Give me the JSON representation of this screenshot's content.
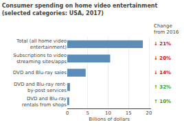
{
  "chart_data": {
    "type": "bar",
    "orientation": "horizontal",
    "title": "Consumer spending on home video entertainment",
    "subtitle": "(selected categories: USA, 2017)",
    "categories": [
      "DVD and Blu-ray\nrentals from shops",
      "DVD and Blu-ray rent-\nby-post services",
      "DVD and Blu-ray sales",
      "Subscriptions to video\nstreaming sites/apps",
      "Total (all home video\nentertainment)"
    ],
    "values": [
      0.45,
      0.65,
      4.5,
      10.5,
      18.5
    ],
    "color": "#5b8db8",
    "xlabel": "Billions of dollars",
    "xlim": [
      0,
      20.5
    ],
    "xticks": [
      0,
      5,
      10,
      15,
      20
    ],
    "grid": true,
    "annotations": [
      {
        "text": "Change\nfrom 2016"
      },
      {
        "text": "↑ 10%",
        "category": "DVD and Blu-ray\nrentals from shops",
        "color": "#22aa22"
      },
      {
        "text": "↑ 32%",
        "category": "DVD and Blu-ray rent-\nby-post services",
        "color": "#22aa22"
      },
      {
        "text": "↓ 14%",
        "category": "DVD and Blu-ray sales",
        "color": "#cc1111"
      },
      {
        "text": "↓ 20%",
        "category": "Subscriptions to video\nstreaming sites/apps",
        "color": "#cc1111"
      },
      {
        "text": "↓ 21%",
        "category": "Total (all home video\nentertainment)",
        "color": "#cc1111"
      }
    ]
  }
}
